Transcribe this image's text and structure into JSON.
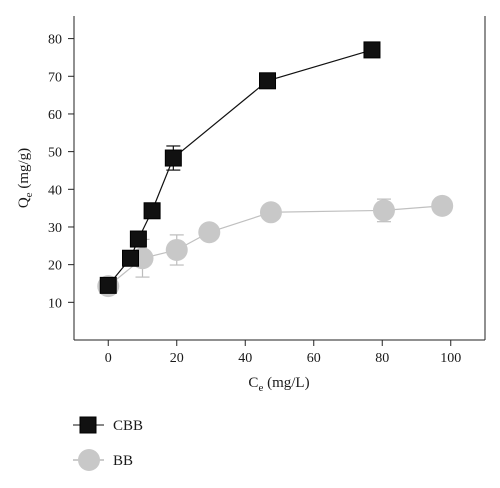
{
  "chart_data": {
    "type": "scatter",
    "xlabel": {
      "main": "C",
      "sub": "e",
      "unit": " (mg/L)"
    },
    "ylabel": {
      "main": "Q",
      "sub": "e",
      "unit": " (mg/g)"
    },
    "xlim": [
      -10,
      110
    ],
    "ylim": [
      0,
      86
    ],
    "xticks": [
      0,
      20,
      40,
      60,
      80,
      100
    ],
    "yticks": [
      10,
      20,
      30,
      40,
      50,
      60,
      70,
      80
    ],
    "grid": false,
    "legend_position": "bottom-left",
    "series": [
      {
        "name": "CBB",
        "marker": "square",
        "color": "#111111",
        "line_color": "#111111",
        "points": [
          {
            "x": 0,
            "y": 14.5,
            "err": 1.5
          },
          {
            "x": 6.5,
            "y": 21.7,
            "err": 1.5
          },
          {
            "x": 8.8,
            "y": 26.8,
            "err": 1.5
          },
          {
            "x": 12.8,
            "y": 34.3,
            "err": 1.5
          },
          {
            "x": 19.0,
            "y": 48.3,
            "err": 3.2
          },
          {
            "x": 46.5,
            "y": 68.8,
            "err": 1.5
          },
          {
            "x": 77.0,
            "y": 77.0,
            "err": 1.5
          }
        ]
      },
      {
        "name": "BB",
        "marker": "circle",
        "color": "#c8c8c8",
        "line_color": "#c0c0c0",
        "points": [
          {
            "x": 0,
            "y": 14.3,
            "err": 1.2
          },
          {
            "x": 10.0,
            "y": 21.7,
            "err": 5.0
          },
          {
            "x": 20.0,
            "y": 23.9,
            "err": 4.0
          },
          {
            "x": 29.5,
            "y": 28.6,
            "err": 1.2
          },
          {
            "x": 47.5,
            "y": 33.9,
            "err": 1.2
          },
          {
            "x": 80.5,
            "y": 34.4,
            "err": 3.0
          },
          {
            "x": 97.5,
            "y": 35.6,
            "err": 1.2
          }
        ]
      }
    ]
  }
}
